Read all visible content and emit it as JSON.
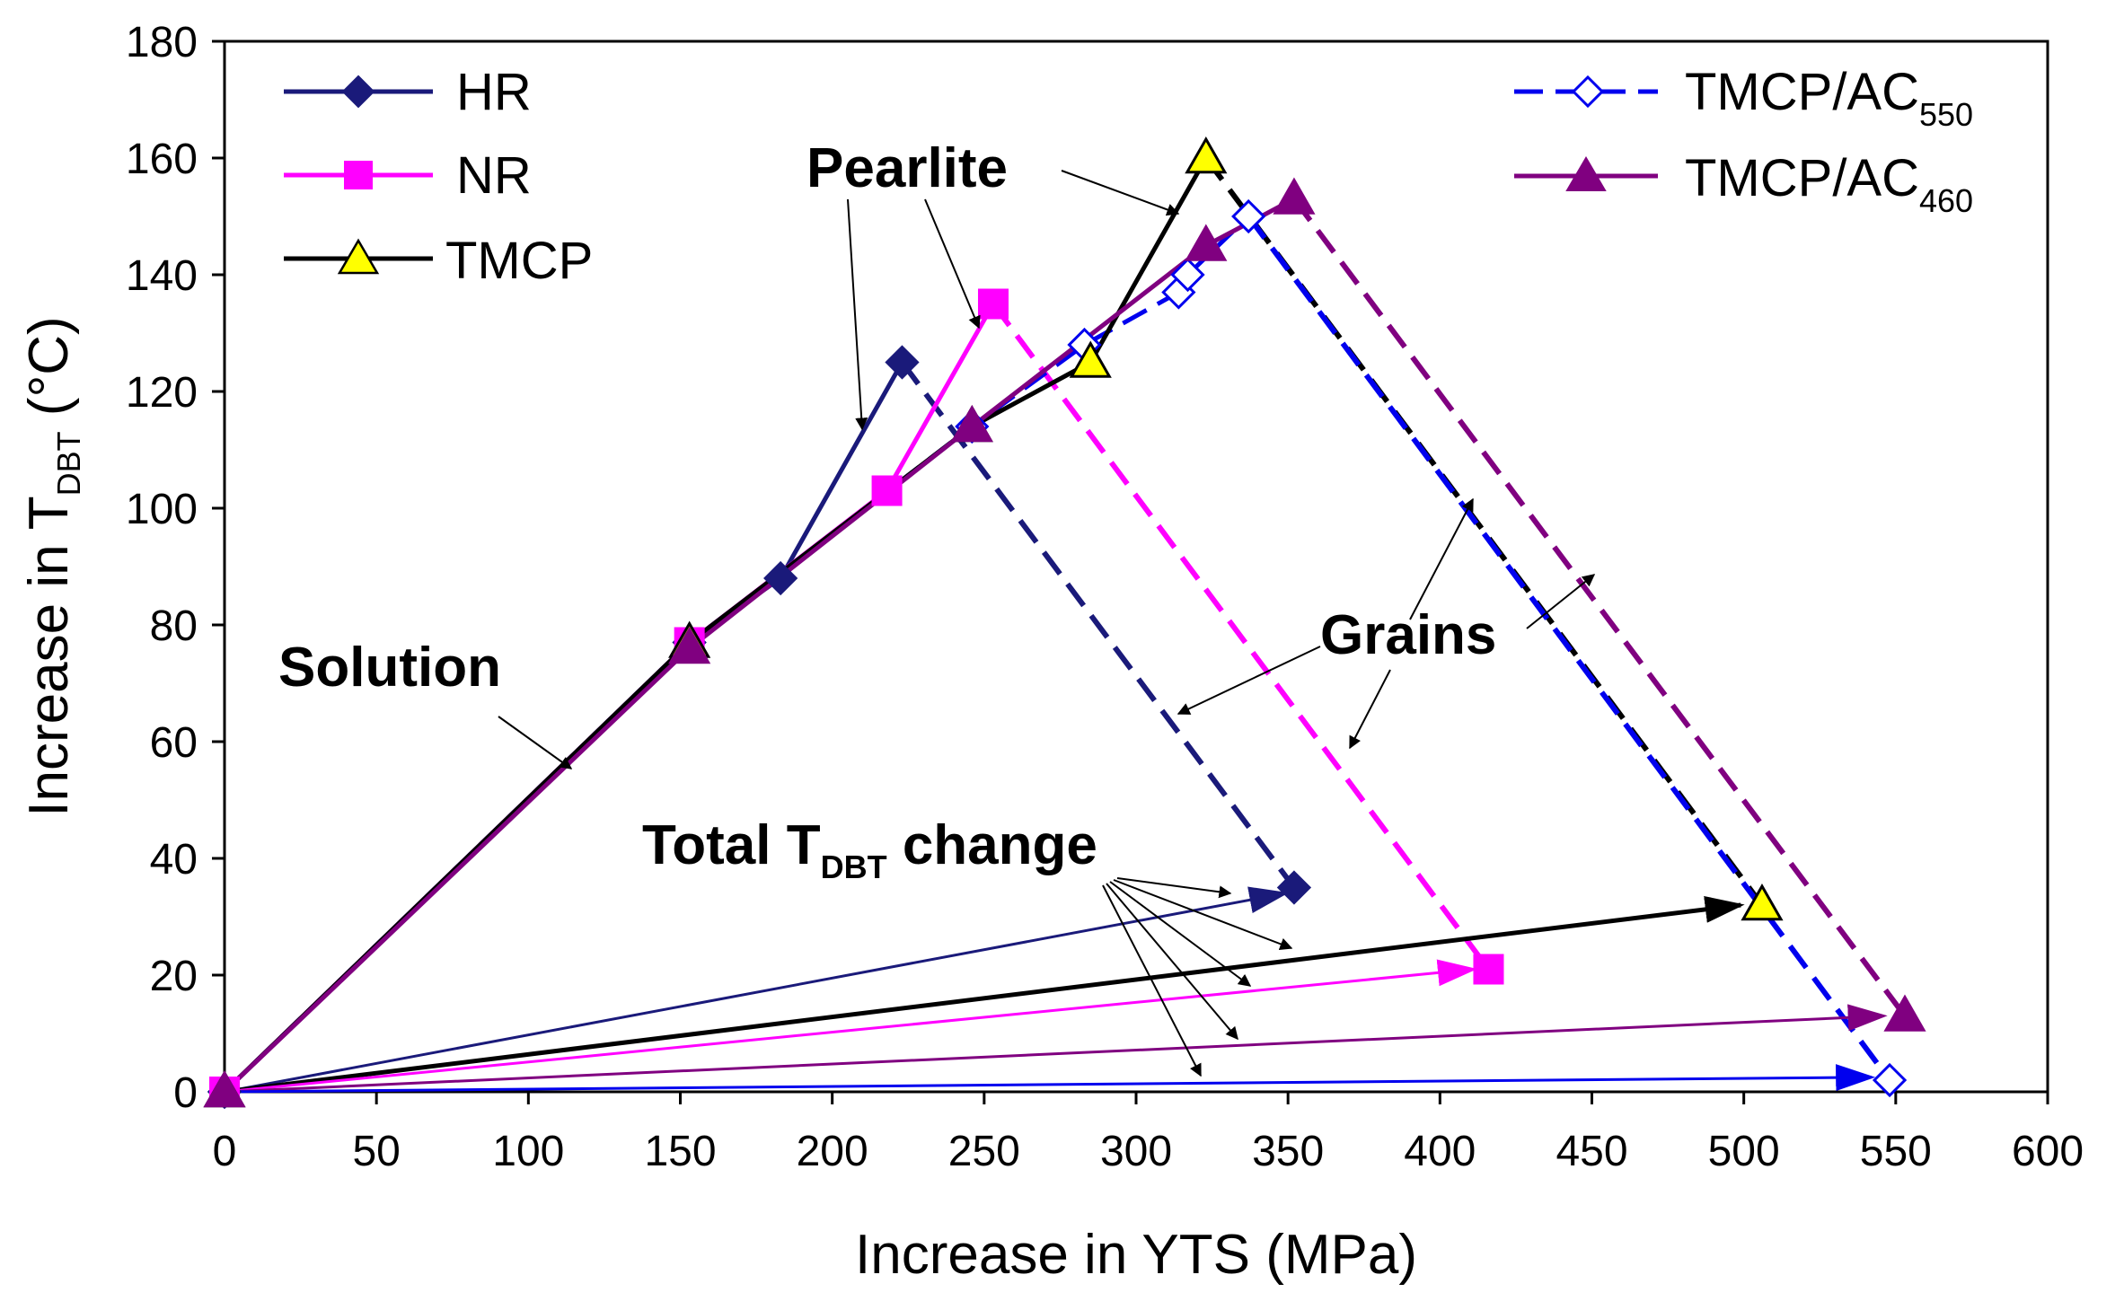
{
  "chart_data": {
    "type": "line",
    "title": "",
    "xlabel": "Increase in YTS (MPa)",
    "ylabel_main": "Increase in T",
    "ylabel_sub": "DBT",
    "ylabel_unit": " (°C)",
    "xlim": [
      0,
      600
    ],
    "ylim": [
      0,
      180
    ],
    "x_ticks": [
      0,
      50,
      100,
      150,
      200,
      250,
      300,
      350,
      400,
      450,
      500,
      550,
      600
    ],
    "y_ticks": [
      0,
      20,
      40,
      60,
      80,
      100,
      120,
      140,
      160,
      180
    ],
    "grid": false,
    "series": [
      {
        "name": "HR",
        "name_sub": "",
        "color": "#1a1a7a",
        "marker": "diamond",
        "filled": true,
        "line": "solid",
        "points": [
          [
            0,
            0
          ],
          [
            153,
            77
          ],
          [
            183,
            88
          ],
          [
            223,
            125
          ]
        ],
        "dashed_to": [
          352,
          35
        ]
      },
      {
        "name": "NR",
        "name_sub": "",
        "color": "#ff00ff",
        "marker": "square",
        "filled": true,
        "line": "solid",
        "points": [
          [
            0,
            0
          ],
          [
            153,
            77
          ],
          [
            218,
            103
          ],
          [
            253,
            135
          ]
        ],
        "dashed_to": [
          416,
          21
        ]
      },
      {
        "name": "TMCP",
        "name_sub": "",
        "color": "#000000",
        "marker": "triangle",
        "filled": true,
        "fill_color": "#ffff00",
        "line": "solid",
        "points": [
          [
            0,
            0
          ],
          [
            153,
            77
          ],
          [
            246,
            114
          ],
          [
            285,
            125
          ],
          [
            323,
            160
          ]
        ],
        "dashed_to": [
          506,
          32
        ]
      },
      {
        "name": "TMCP/AC",
        "name_sub": "550",
        "color": "#0000ee",
        "marker": "diamond",
        "filled": false,
        "line": "dashed",
        "points": [
          [
            0,
            0
          ],
          [
            153,
            77
          ],
          [
            246,
            114
          ],
          [
            283,
            128
          ],
          [
            314,
            137
          ],
          [
            317,
            140
          ],
          [
            337,
            150
          ]
        ],
        "dashed_to": [
          548,
          2
        ]
      },
      {
        "name": "TMCP/AC",
        "name_sub": "460",
        "color": "#800080",
        "marker": "triangle",
        "filled": true,
        "line": "solid",
        "points": [
          [
            0,
            0
          ],
          [
            153,
            76
          ],
          [
            246,
            114
          ],
          [
            323,
            145
          ],
          [
            352,
            153
          ]
        ],
        "dashed_to": [
          553,
          13
        ]
      }
    ],
    "total_change_arrows": [
      {
        "series": "HR",
        "to": [
          349,
          34
        ]
      },
      {
        "series": "TMCP",
        "to": [
          499,
          32
        ]
      },
      {
        "series": "NR",
        "to": [
          411,
          21
        ]
      },
      {
        "series": "TMCP/AC460",
        "to": [
          546,
          13
        ]
      },
      {
        "series": "TMCP/AC550",
        "to": [
          542,
          2.5
        ]
      }
    ],
    "annotations": {
      "solution": "Solution",
      "pearlite": "Pearlite",
      "grains": "Grains",
      "total_main": "Total T",
      "total_sub": "DBT",
      "total_tail": " change"
    },
    "legend_position": "top-left and top-right"
  }
}
